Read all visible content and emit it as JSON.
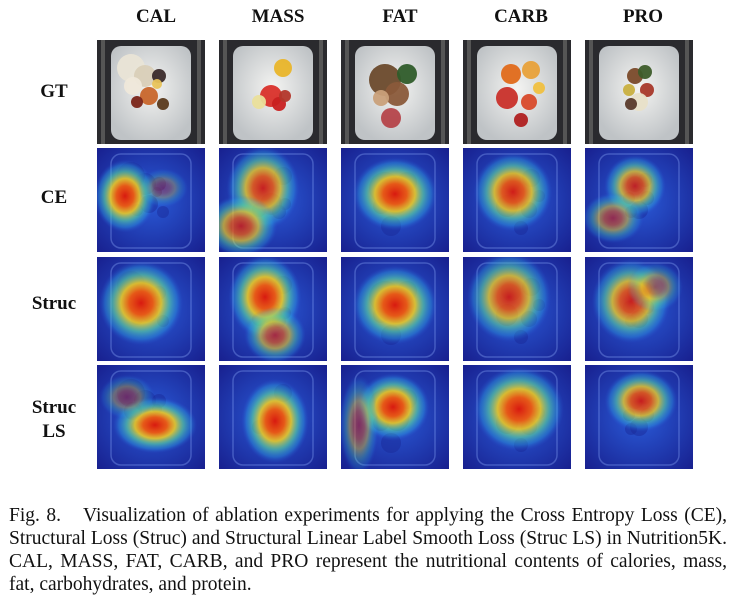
{
  "columns": [
    "CAL",
    "MASS",
    "FAT",
    "CARB",
    "PRO"
  ],
  "rows": [
    {
      "label_lines": [
        "GT"
      ],
      "type": "photo"
    },
    {
      "label_lines": [
        "CE"
      ],
      "type": "heatmap"
    },
    {
      "label_lines": [
        "Struc"
      ],
      "type": "heatmap"
    },
    {
      "label_lines": [
        "Struc",
        "LS"
      ],
      "type": "heatmap"
    }
  ],
  "caption": {
    "label": "Fig. 8.",
    "text": "Visualization of ablation experiments for applying the Cross Entropy Loss (CE), Structural Loss (Struc) and Structural Linear Label Smooth Loss (Struc LS) in Nutrition5K. CAL, MASS, FAT, CARB, and PRO represent the nutritional contents of calories, mass, fat, carbohydrates, and protein."
  }
}
